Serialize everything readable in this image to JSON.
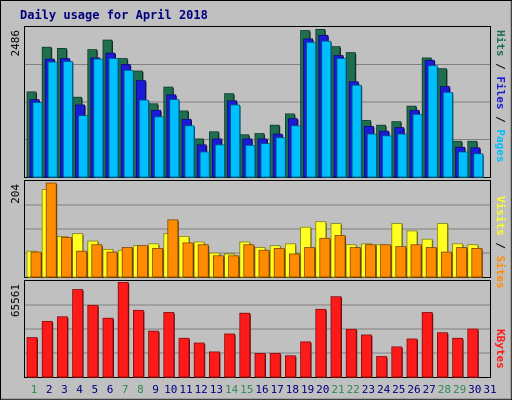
{
  "colors": {
    "frame_bg": "#c0c0c0",
    "title": "#00007f",
    "hits": "#1f6f4f",
    "files": "#1a1ad8",
    "pages": "#00bfff",
    "visits": "#ffff22",
    "sites": "#ff8c00",
    "kbytes": "#ff1a1a",
    "weekend_day": "#2e8b57",
    "weekday_day": "#00007f"
  },
  "chart_data": [
    {
      "type": "bar",
      "title": "Daily usage for April 2018",
      "categories": [
        "1",
        "2",
        "3",
        "4",
        "5",
        "6",
        "7",
        "8",
        "9",
        "10",
        "11",
        "12",
        "13",
        "14",
        "15",
        "16",
        "17",
        "18",
        "19",
        "20",
        "21",
        "22",
        "23",
        "24",
        "25",
        "26",
        "27",
        "28",
        "29",
        "30",
        "31"
      ],
      "weekend_days": [
        "1",
        "7",
        "8",
        "14",
        "15",
        "21",
        "22",
        "28",
        "29"
      ],
      "ymax_label": "2486",
      "ylim": [
        0,
        2486
      ],
      "legend": [
        "Pages",
        "Files",
        "Hits"
      ],
      "series": [
        {
          "name": "Hits",
          "values": [
            1430,
            2180,
            2160,
            1340,
            2140,
            2300,
            1990,
            1780,
            1230,
            1510,
            1110,
            640,
            760,
            1400,
            710,
            730,
            870,
            1060,
            2460,
            2480,
            2190,
            2090,
            950,
            870,
            930,
            1190,
            2000,
            1820,
            600,
            600,
            0
          ]
        },
        {
          "name": "Files",
          "values": [
            1300,
            1980,
            1990,
            1210,
            2000,
            2080,
            1890,
            1620,
            1120,
            1380,
            970,
            540,
            640,
            1280,
            640,
            640,
            720,
            980,
            2320,
            2380,
            2040,
            1600,
            850,
            770,
            830,
            1120,
            1960,
            1520,
            500,
            490,
            0
          ]
        },
        {
          "name": "Pages",
          "values": [
            1250,
            1930,
            1940,
            1030,
            1980,
            1990,
            1790,
            1290,
            1010,
            1300,
            860,
            420,
            540,
            1210,
            530,
            560,
            660,
            860,
            2260,
            2280,
            1990,
            1540,
            720,
            690,
            720,
            1050,
            1870,
            1420,
            420,
            390,
            0
          ]
        }
      ]
    },
    {
      "type": "bar",
      "categories": [
        "1",
        "2",
        "3",
        "4",
        "5",
        "6",
        "7",
        "8",
        "9",
        "10",
        "11",
        "12",
        "13",
        "14",
        "15",
        "16",
        "17",
        "18",
        "19",
        "20",
        "21",
        "22",
        "23",
        "24",
        "25",
        "26",
        "27",
        "28",
        "29",
        "30",
        "31"
      ],
      "ymax_label": "204",
      "ylim": [
        0,
        204
      ],
      "legend": [
        "Sites",
        "Visits"
      ],
      "series": [
        {
          "name": "Visits",
          "values": [
            56,
            190,
            88,
            94,
            78,
            60,
            58,
            68,
            72,
            94,
            88,
            76,
            52,
            50,
            76,
            64,
            68,
            72,
            108,
            120,
            116,
            70,
            72,
            70,
            116,
            100,
            82,
            116,
            72,
            70,
            0
          ]
        },
        {
          "name": "Sites",
          "values": [
            54,
            204,
            86,
            56,
            70,
            54,
            64,
            68,
            62,
            124,
            74,
            70,
            46,
            46,
            70,
            58,
            62,
            50,
            64,
            84,
            90,
            64,
            70,
            70,
            66,
            70,
            64,
            54,
            64,
            62,
            0
          ]
        }
      ]
    },
    {
      "type": "bar",
      "categories": [
        "1",
        "2",
        "3",
        "4",
        "5",
        "6",
        "7",
        "8",
        "9",
        "10",
        "11",
        "12",
        "13",
        "14",
        "15",
        "16",
        "17",
        "18",
        "19",
        "20",
        "21",
        "22",
        "23",
        "24",
        "25",
        "26",
        "27",
        "28",
        "29",
        "30",
        "31"
      ],
      "ymax_label": "65561",
      "ylim": [
        0,
        65561
      ],
      "legend": [
        "KBytes"
      ],
      "series": [
        {
          "name": "KBytes",
          "values": [
            27500,
            38800,
            42000,
            61000,
            50000,
            41000,
            66000,
            46500,
            32000,
            45000,
            27000,
            23700,
            17500,
            30000,
            44500,
            16500,
            16500,
            14800,
            24500,
            47200,
            56000,
            33300,
            29300,
            14300,
            21000,
            26500,
            45000,
            30900,
            27000,
            33500,
            0
          ]
        }
      ]
    }
  ]
}
